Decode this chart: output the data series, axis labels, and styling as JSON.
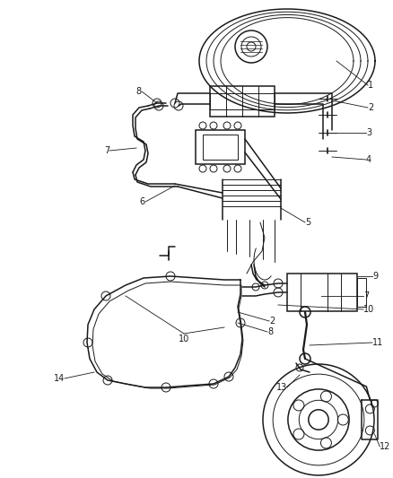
{
  "bg_color": "#ffffff",
  "line_color": "#1a1a1a",
  "label_color": "#1a1a1a",
  "fig_width": 4.38,
  "fig_height": 5.33,
  "dpi": 100,
  "lw_main": 1.1,
  "lw_thin": 0.7,
  "lw_thick": 1.6,
  "fontsize": 7.0
}
